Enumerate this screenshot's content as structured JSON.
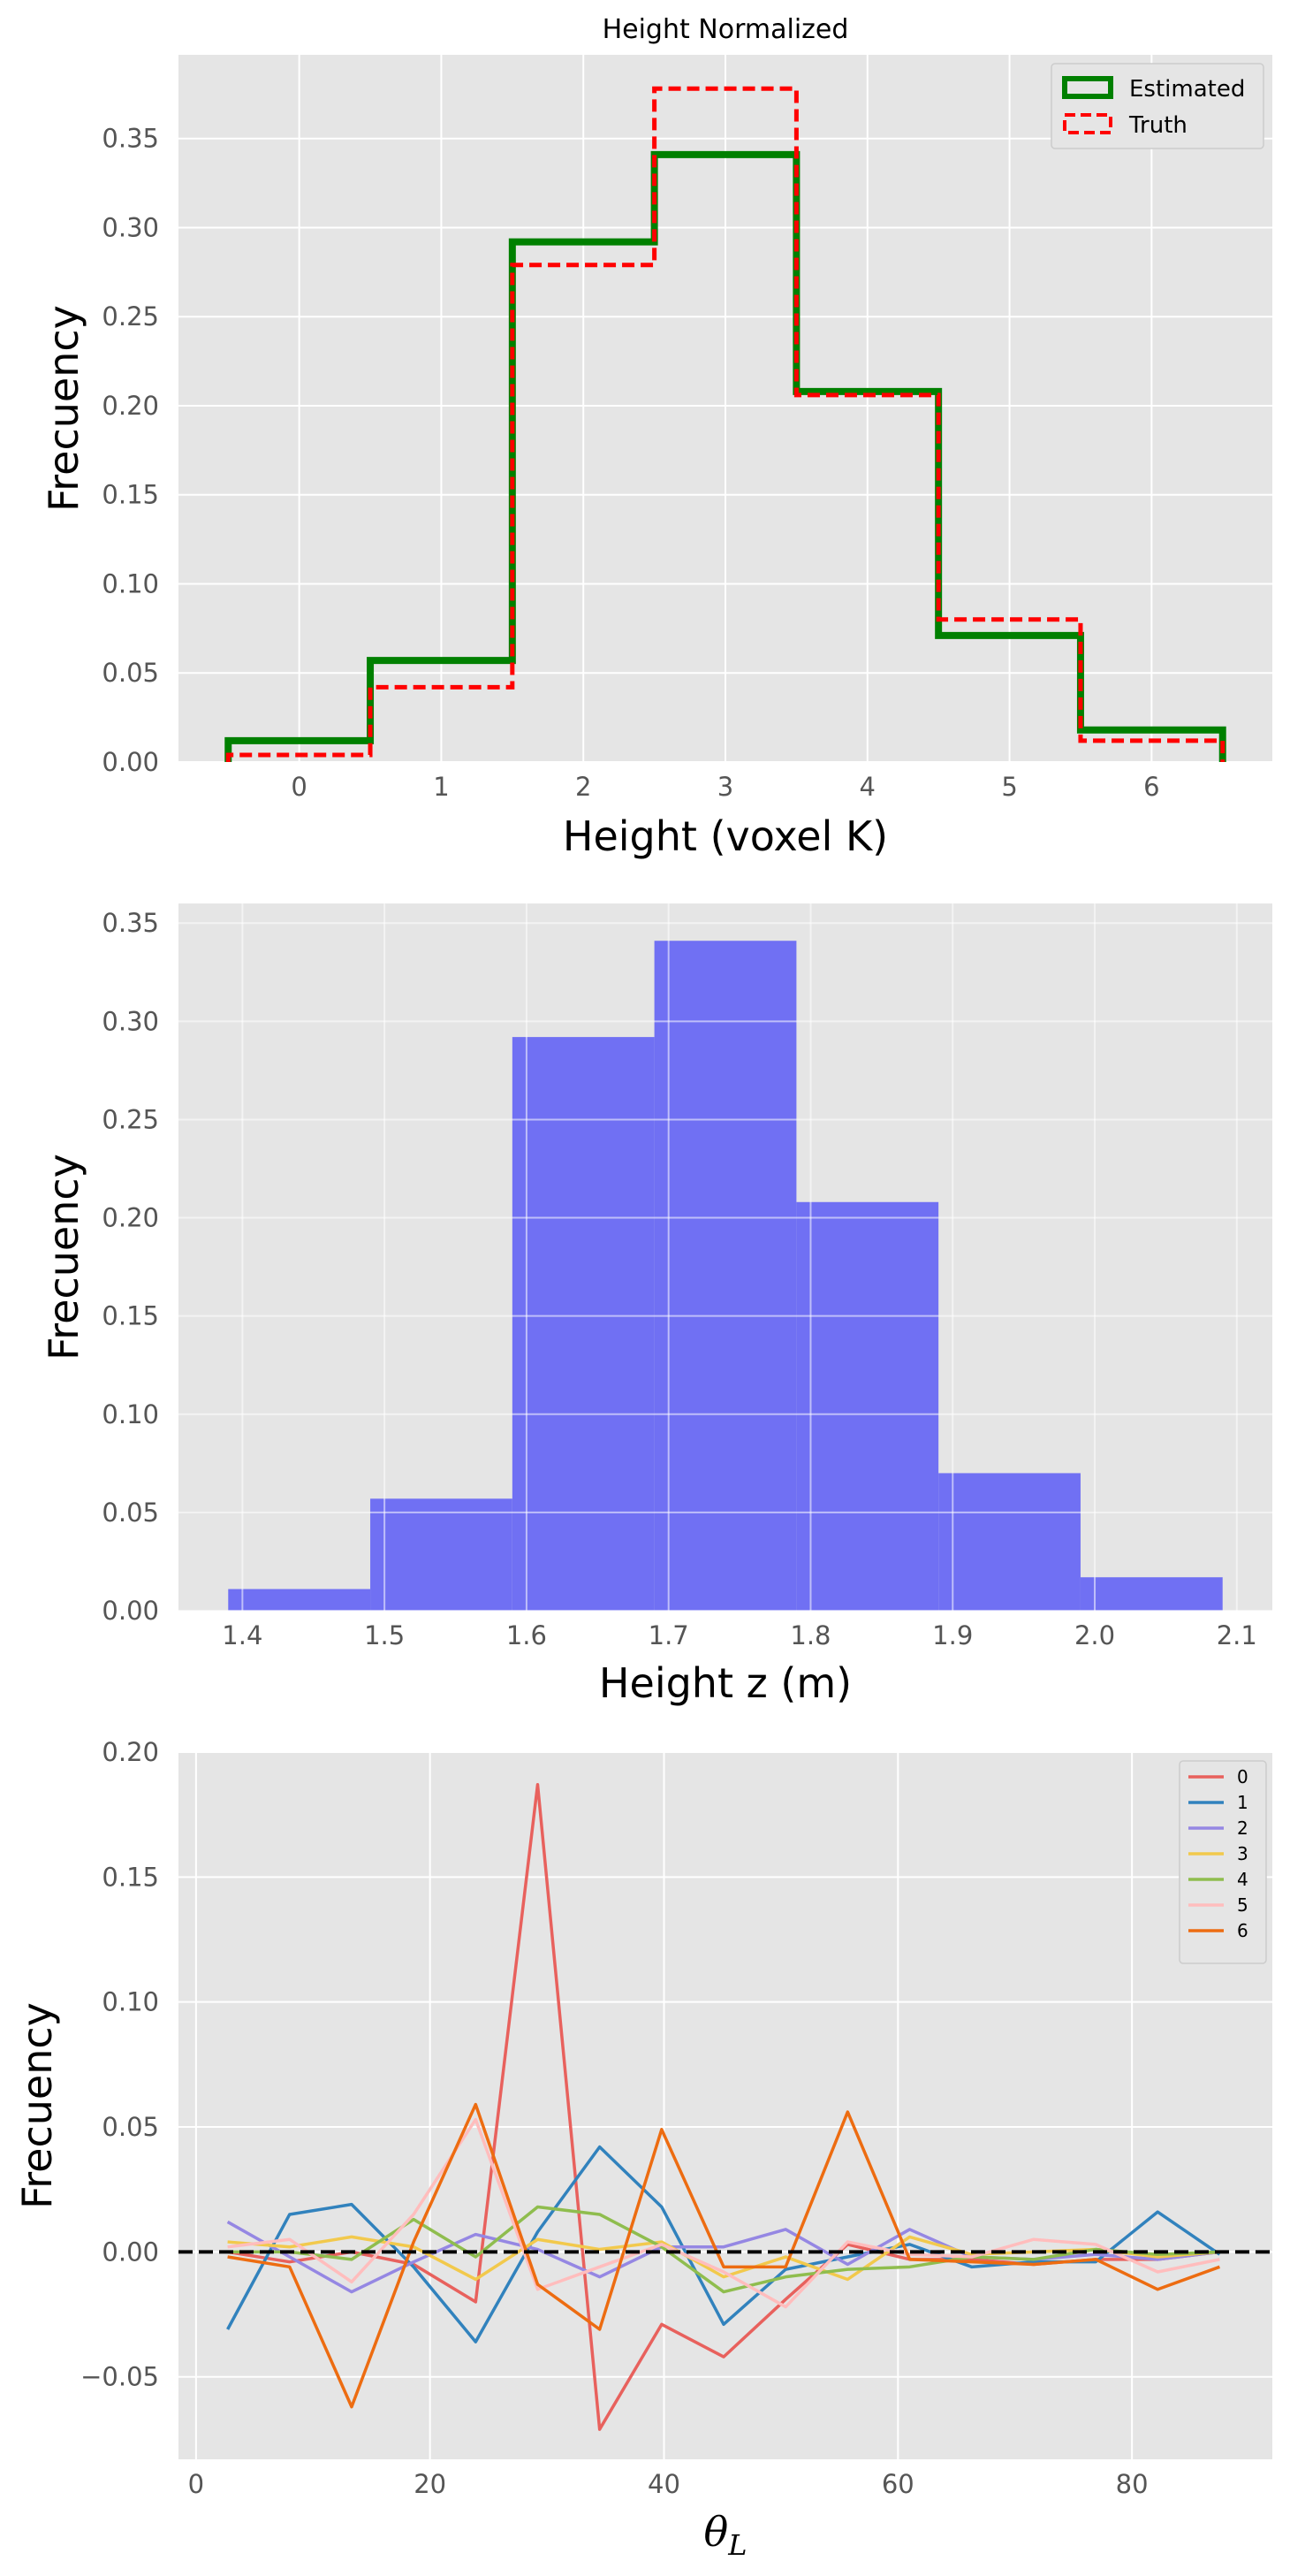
{
  "chart_data": [
    {
      "type": "step",
      "title": "Height Normalized",
      "xlabel": "Height (voxel K)",
      "ylabel": "Frecuency",
      "xlim": [
        -0.85,
        6.85
      ],
      "ylim": [
        0.0,
        0.397
      ],
      "xticks": [
        "0",
        "1",
        "2",
        "3",
        "4",
        "5",
        "6"
      ],
      "yticks": [
        "0.00",
        "0.05",
        "0.10",
        "0.15",
        "0.20",
        "0.25",
        "0.30",
        "0.35"
      ],
      "bin_edges": [
        -0.5,
        0.5,
        1.5,
        2.5,
        3.5,
        4.5,
        5.5,
        6.5
      ],
      "legend_position": "top-right",
      "series": [
        {
          "name": "Estimated",
          "color": "#008000",
          "values": [
            0.012,
            0.057,
            0.292,
            0.341,
            0.208,
            0.071,
            0.018
          ]
        },
        {
          "name": "Truth",
          "color": "#ff0000",
          "values": [
            0.004,
            0.042,
            0.279,
            0.378,
            0.206,
            0.08,
            0.012
          ]
        }
      ],
      "grid": true
    },
    {
      "type": "bar",
      "xlabel": "Height z (m)",
      "ylabel": "Frecuency",
      "xlim": [
        1.355,
        2.125
      ],
      "ylim": [
        0.0,
        0.36
      ],
      "xticks": [
        "1.4",
        "1.5",
        "1.6",
        "1.7",
        "1.8",
        "1.9",
        "2.0",
        "2.1"
      ],
      "yticks": [
        "0.00",
        "0.05",
        "0.10",
        "0.15",
        "0.20",
        "0.25",
        "0.30",
        "0.35"
      ],
      "bin_edges": [
        1.39,
        1.49,
        1.59,
        1.69,
        1.79,
        1.89,
        1.99,
        2.09
      ],
      "values": [
        0.011,
        0.057,
        0.292,
        0.341,
        0.208,
        0.07,
        0.017
      ],
      "color": "#7070f3",
      "grid": true
    },
    {
      "type": "line",
      "xlabel": "θ_L",
      "ylabel": "Frecuency",
      "xlim": [
        -1.5,
        92
      ],
      "ylim": [
        -0.083,
        0.2
      ],
      "xticks": [
        "0",
        "20",
        "40",
        "60",
        "80"
      ],
      "yticks": [
        "−0.05",
        "0.00",
        "0.05",
        "0.10",
        "0.15",
        "0.20"
      ],
      "x": [
        2.7,
        8.0,
        13.3,
        18.6,
        23.9,
        29.2,
        34.5,
        39.8,
        45.1,
        50.4,
        55.7,
        61.0,
        66.3,
        71.6,
        76.9,
        82.2,
        87.5
      ],
      "reference_line": 0.0,
      "legend_position": "top-right",
      "series": [
        {
          "name": "0",
          "color": "#e8615d",
          "values": [
            0.0,
            -0.004,
            0.0,
            -0.005,
            -0.02,
            0.187,
            -0.071,
            -0.029,
            -0.042,
            -0.019,
            0.003,
            -0.003,
            -0.003,
            -0.005,
            -0.003,
            -0.003,
            0.0
          ]
        },
        {
          "name": "1",
          "color": "#3182bd",
          "values": [
            -0.031,
            0.015,
            0.019,
            -0.006,
            -0.036,
            0.008,
            0.042,
            0.018,
            -0.029,
            -0.007,
            -0.002,
            0.003,
            -0.006,
            -0.004,
            -0.004,
            0.016,
            -0.001
          ]
        },
        {
          "name": "2",
          "color": "#9587e3",
          "values": [
            0.012,
            -0.002,
            -0.016,
            -0.004,
            0.007,
            0.001,
            -0.01,
            0.002,
            0.002,
            0.009,
            -0.005,
            0.009,
            -0.002,
            -0.003,
            -0.001,
            -0.003,
            0.0
          ]
        },
        {
          "name": "3",
          "color": "#f2c94c",
          "values": [
            0.004,
            0.002,
            0.006,
            0.002,
            -0.011,
            0.005,
            0.001,
            0.004,
            -0.01,
            -0.002,
            -0.011,
            0.006,
            -0.001,
            0.0,
            0.001,
            -0.002,
            0.0
          ]
        },
        {
          "name": "4",
          "color": "#8fbd4e",
          "values": [
            0.0,
            0.0,
            -0.003,
            0.013,
            -0.002,
            0.018,
            0.015,
            0.002,
            -0.016,
            -0.01,
            -0.007,
            -0.006,
            -0.002,
            -0.003,
            0.001,
            -0.001,
            0.0
          ]
        },
        {
          "name": "5",
          "color": "#ffbdbd",
          "values": [
            0.002,
            0.005,
            -0.012,
            0.015,
            0.053,
            -0.015,
            -0.006,
            0.003,
            -0.008,
            -0.022,
            0.004,
            -0.001,
            -0.002,
            0.005,
            0.003,
            -0.008,
            -0.003
          ]
        },
        {
          "name": "6",
          "color": "#ed6c11",
          "values": [
            -0.002,
            -0.006,
            -0.062,
            0.004,
            0.059,
            -0.013,
            -0.031,
            0.049,
            -0.006,
            -0.006,
            0.056,
            -0.003,
            -0.004,
            -0.005,
            -0.003,
            -0.015,
            -0.006
          ]
        }
      ],
      "grid": true
    }
  ]
}
